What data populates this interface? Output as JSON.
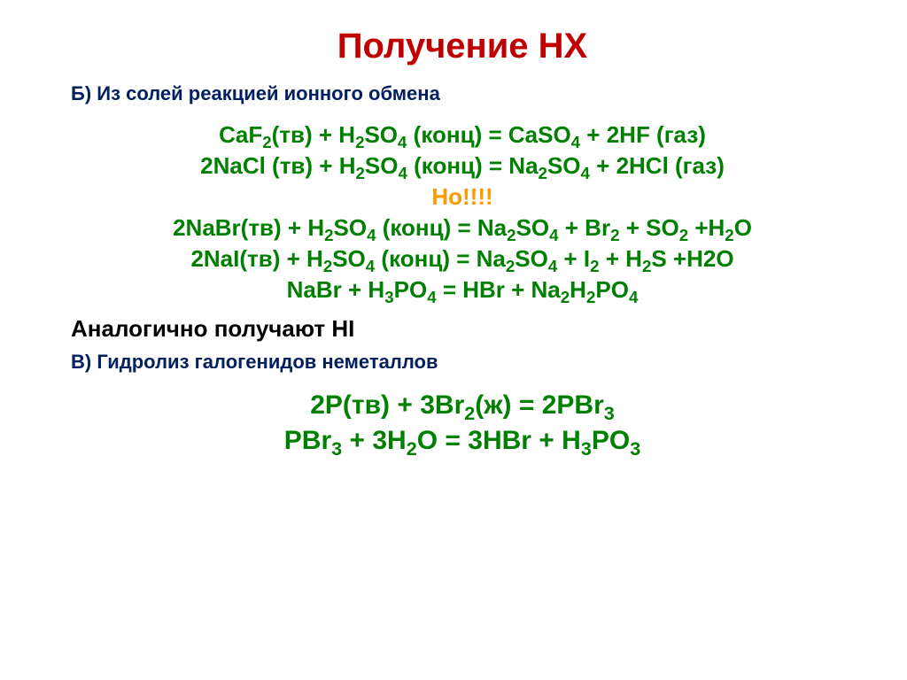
{
  "title": {
    "text": "Получение НХ",
    "color": "#c00000",
    "fontsize": 40
  },
  "section_b": {
    "text": "Б) Из солей реакцией ионного обмена",
    "color": "#002060",
    "fontsize": 22
  },
  "eq_block_1": {
    "color": "#008000",
    "fontsize": 26,
    "lines": {
      "l1": "CaF₂(тв) + H₂SO₄ (конц) =  CaSO₄  +  2HF (газ)",
      "l2": "2NaCl (тв) + H₂SO₄ (конц) = Na₂SO₄ + 2HCl (газ)"
    }
  },
  "but_line": {
    "text": "Но!!!!",
    "color": "#ff9900",
    "fontsize": 26
  },
  "eq_block_2": {
    "color": "#008000",
    "fontsize": 26,
    "lines": {
      "l1": "2NaBr(тв) + H₂SO₄ (конц) =  Na₂SO₄ + Br₂ + SO₂ +H₂O",
      "l2": "2NaI(тв) + H₂SO₄ (конц) = Na₂SO₄ + I₂ + H₂S +H2O",
      "l3": "NaBr + H₃PO₄ = HBr + Na₂H₂PO₄"
    }
  },
  "analog_line": {
    "text": "Аналогично получают HI",
    "color": "#000000",
    "fontsize": 26
  },
  "section_v": {
    "text": "В) Гидролиз галогенидов неметаллов",
    "color": "#002060",
    "fontsize": 22
  },
  "eq_block_3": {
    "color": "#008000",
    "fontsize": 30,
    "lines": {
      "l1": "2P(тв) + 3Br₂(ж) = 2PBr₃",
      "l2": "PBr₃ + 3H₂O = 3HBr + H₃PO₃"
    }
  }
}
